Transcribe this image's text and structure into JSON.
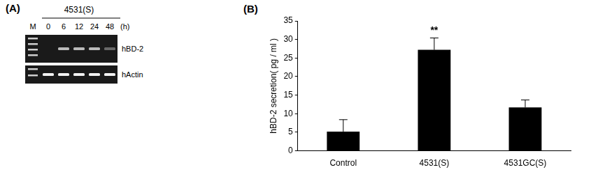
{
  "panel_a": {
    "label": "(A)",
    "sample": "4531(S)",
    "lanes": [
      "M",
      "0",
      "6",
      "12",
      "24",
      "48"
    ],
    "time_unit": "(h)",
    "rows": [
      "hBD-2",
      "hActin"
    ]
  },
  "chart_data": {
    "type": "bar",
    "panel_label": "(B)",
    "y_label": "hBD-2 secretion( pg / ml )",
    "categories": [
      "Control",
      "4531(S)",
      "4531GC(S)"
    ],
    "values": [
      5.2,
      27.2,
      11.7
    ],
    "errors": [
      3.2,
      3.2,
      2.0
    ],
    "color": "#000000",
    "ylim": [
      0,
      35
    ],
    "yticks": [
      0,
      5,
      10,
      15,
      20,
      25,
      30,
      35
    ],
    "grid": false,
    "annotations": [
      {
        "text": "**",
        "category": "4531(S)"
      }
    ]
  }
}
